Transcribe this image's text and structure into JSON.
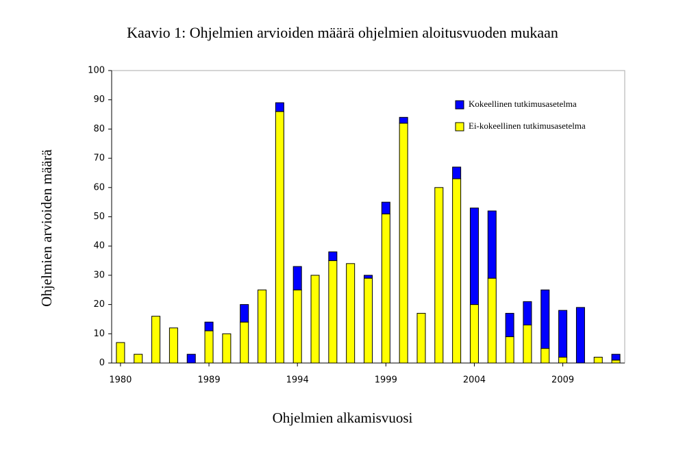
{
  "chart_data": {
    "type": "stacked_bar",
    "title": "Kaavio 1: Ohjelmien arvioiden määrä ohjelmien aloitusvuoden mukaan",
    "x_label": "Ohjelmien alkamisvuosi",
    "y_label": "Ohjelmien arvioiden määrä",
    "categories": [
      "1980",
      null,
      null,
      null,
      null,
      "1989",
      null,
      null,
      null,
      null,
      "1994",
      null,
      null,
      null,
      null,
      "1999",
      null,
      null,
      null,
      null,
      "2004",
      null,
      null,
      null,
      null,
      "2009",
      null,
      null,
      null
    ],
    "series": [
      {
        "name": "Kokeellinen tutkimusasetelma",
        "color": "#0000ff",
        "values": [
          0,
          0,
          0,
          0,
          3,
          3,
          0,
          6,
          0,
          3,
          8,
          0,
          3,
          0,
          1,
          4,
          2,
          0,
          0,
          4,
          33,
          23,
          8,
          8,
          20,
          16,
          19,
          0,
          2
        ]
      },
      {
        "name": "Ei-kokeellinen tutkimusasetelma",
        "color": "#ffff00",
        "values": [
          7,
          3,
          16,
          12,
          0,
          11,
          10,
          14,
          25,
          86,
          25,
          30,
          35,
          34,
          29,
          51,
          82,
          17,
          60,
          63,
          20,
          29,
          9,
          13,
          5,
          2,
          0,
          2,
          1
        ]
      }
    ],
    "ylim": [
      0,
      100
    ],
    "yticks": [
      0,
      10,
      20,
      30,
      40,
      50,
      60,
      70,
      80,
      90,
      100
    ],
    "legend": "upper-right"
  }
}
